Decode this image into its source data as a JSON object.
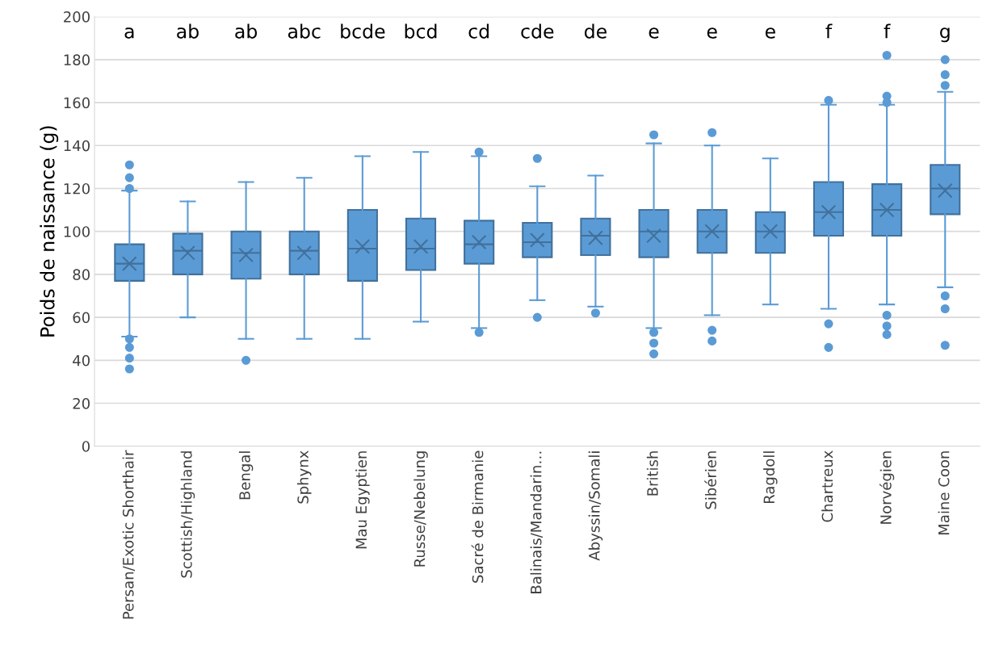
{
  "chart_data": {
    "type": "box",
    "ylabel": "Poids de naissance (g)",
    "categories": [
      "Persan/Exotic Shorthair",
      "Scottish/Highland",
      "Bengal",
      "Sphynx",
      "Mau Egyptien",
      "Russe/Nebelung",
      "Sacré de Birmanie",
      "Balinais/Mandarin…",
      "Abyssin/Somali",
      "British",
      "Sibérien",
      "Ragdoll",
      "Chartreux",
      "Norvégien",
      "Maine Coon"
    ],
    "color": "#5b9bd5",
    "ylim": [
      0,
      200
    ],
    "yticks": [
      0,
      20,
      40,
      60,
      80,
      100,
      120,
      140,
      160,
      180,
      200
    ],
    "grid": "y",
    "boxes": [
      {
        "low": 51,
        "q1": 77,
        "median": 85,
        "q3": 94,
        "high": 119,
        "mean": 85,
        "outliers": [
          131,
          125,
          120,
          50,
          46,
          41,
          36
        ]
      },
      {
        "low": 60,
        "q1": 80,
        "median": 91,
        "q3": 99,
        "high": 114,
        "mean": 90
      },
      {
        "low": 50,
        "q1": 78,
        "median": 90,
        "q3": 100,
        "high": 123,
        "mean": 89,
        "outliers": [
          40
        ]
      },
      {
        "low": 50,
        "q1": 80,
        "median": 91,
        "q3": 100,
        "high": 125,
        "mean": 90
      },
      {
        "low": 50,
        "q1": 77,
        "median": 92,
        "q3": 110,
        "high": 135,
        "mean": 93
      },
      {
        "low": 58,
        "q1": 82,
        "median": 92,
        "q3": 106,
        "high": 137,
        "mean": 93
      },
      {
        "low": 55,
        "q1": 85,
        "median": 94,
        "q3": 105,
        "high": 135,
        "mean": 95,
        "outliers": [
          137,
          53
        ]
      },
      {
        "low": 68,
        "q1": 88,
        "median": 95,
        "q3": 104,
        "high": 121,
        "mean": 96,
        "outliers": [
          134,
          60
        ]
      },
      {
        "low": 65,
        "q1": 89,
        "median": 98,
        "q3": 106,
        "high": 126,
        "mean": 97,
        "outliers": [
          62
        ]
      },
      {
        "low": 55,
        "q1": 88,
        "median": 100,
        "q3": 110,
        "high": 141,
        "mean": 98,
        "outliers": [
          145,
          53,
          48,
          43
        ]
      },
      {
        "low": 61,
        "q1": 90,
        "median": 100,
        "q3": 110,
        "high": 140,
        "mean": 100,
        "outliers": [
          146,
          54,
          49
        ]
      },
      {
        "low": 66,
        "q1": 90,
        "median": 100,
        "q3": 109,
        "high": 134,
        "mean": 100
      },
      {
        "low": 64,
        "q1": 98,
        "median": 109,
        "q3": 123,
        "high": 159,
        "mean": 109,
        "outliers": [
          161,
          57,
          46
        ]
      },
      {
        "low": 66,
        "q1": 98,
        "median": 110,
        "q3": 122,
        "high": 159,
        "mean": 110,
        "outliers": [
          182,
          163,
          160,
          61,
          56,
          52
        ]
      },
      {
        "low": 74,
        "q1": 108,
        "median": 120,
        "q3": 131,
        "high": 165,
        "mean": 119,
        "outliers": [
          180,
          173,
          168,
          70,
          64,
          47
        ]
      }
    ],
    "annotations": [
      "a",
      "ab",
      "ab",
      "abc",
      "bcde",
      "bcd",
      "cd",
      "cde",
      "de",
      "e",
      "e",
      "e",
      "f",
      "f",
      "g"
    ]
  }
}
